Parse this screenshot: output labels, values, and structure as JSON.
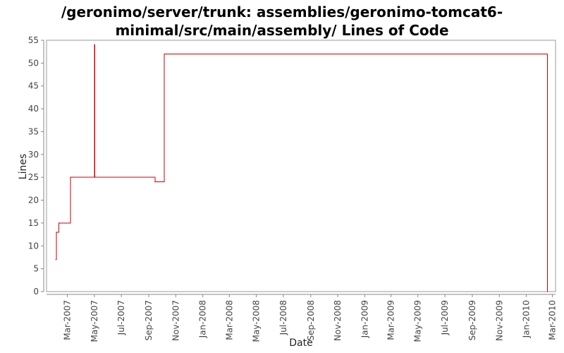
{
  "chart_data": {
    "type": "line",
    "title_lines": [
      "/geronimo/server/trunk: assemblies/geronimo-tomcat6-",
      "minimal/src/main/assembly/ Lines of Code"
    ],
    "xlabel": "Date",
    "ylabel": "Lines",
    "ylim": [
      0,
      55
    ],
    "yticks": [
      0,
      5,
      10,
      15,
      20,
      25,
      30,
      35,
      40,
      45,
      50,
      55
    ],
    "xlim": [
      "2007-01-13",
      "2010-03-08"
    ],
    "xticks": [
      {
        "label": "Mar-2007",
        "date": "2007-03-01"
      },
      {
        "label": "May-2007",
        "date": "2007-05-01"
      },
      {
        "label": "Jul-2007",
        "date": "2007-07-01"
      },
      {
        "label": "Sep-2007",
        "date": "2007-09-01"
      },
      {
        "label": "Nov-2007",
        "date": "2007-11-01"
      },
      {
        "label": "Jan-2008",
        "date": "2008-01-01"
      },
      {
        "label": "Mar-2008",
        "date": "2008-03-01"
      },
      {
        "label": "May-2008",
        "date": "2008-05-01"
      },
      {
        "label": "Jul-2008",
        "date": "2008-07-01"
      },
      {
        "label": "Sep-2008",
        "date": "2008-09-01"
      },
      {
        "label": "Nov-2008",
        "date": "2008-11-01"
      },
      {
        "label": "Jan-2009",
        "date": "2009-01-01"
      },
      {
        "label": "Mar-2009",
        "date": "2009-03-01"
      },
      {
        "label": "May-2009",
        "date": "2009-05-01"
      },
      {
        "label": "Jul-2009",
        "date": "2009-07-01"
      },
      {
        "label": "Sep-2009",
        "date": "2009-09-01"
      },
      {
        "label": "Nov-2009",
        "date": "2009-11-01"
      },
      {
        "label": "Jan-2010",
        "date": "2010-01-01"
      },
      {
        "label": "Mar-2010",
        "date": "2010-03-01"
      }
    ],
    "series": [
      {
        "step": true,
        "color": "#cc0000",
        "points": [
          {
            "x": "2007-02-03",
            "y": 7
          },
          {
            "x": "2007-02-04",
            "y": 13
          },
          {
            "x": "2007-02-10",
            "y": 15
          },
          {
            "x": "2007-03-08",
            "y": 25
          },
          {
            "x": "2007-05-01",
            "y": 54
          },
          {
            "x": "2007-05-02",
            "y": 25
          },
          {
            "x": "2007-09-15",
            "y": 24
          },
          {
            "x": "2007-10-06",
            "y": 52
          },
          {
            "x": "2010-02-18",
            "y": 0
          }
        ]
      }
    ],
    "grid": false,
    "legend": "none"
  }
}
